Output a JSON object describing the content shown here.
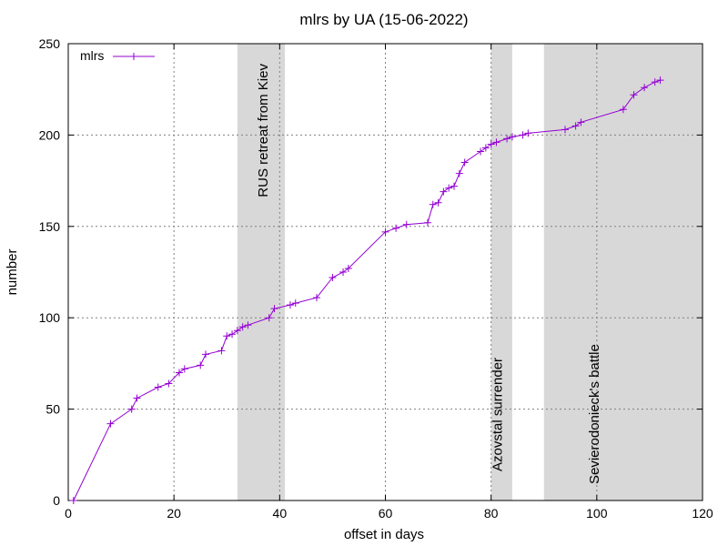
{
  "chart_data": {
    "type": "line",
    "title": "mlrs by UA (15-06-2022)",
    "xlabel": "offset in days",
    "ylabel": "number",
    "xlim": [
      0,
      120
    ],
    "ylim": [
      0,
      250
    ],
    "xticks": [
      0,
      20,
      40,
      60,
      80,
      100,
      120
    ],
    "yticks": [
      0,
      50,
      100,
      150,
      200,
      250
    ],
    "grid": true,
    "legend": {
      "position": "top-left"
    },
    "colors": {
      "series": "#9400d3",
      "band": "#d8d8d8"
    },
    "bands": [
      {
        "x0": 32,
        "x1": 41,
        "label": "RUS retreat from Kiev"
      },
      {
        "x0": 80,
        "x1": 84,
        "label": "Azovstal surrender"
      },
      {
        "x0": 90,
        "x1": 120,
        "label": "Sevierodonieck's battle"
      }
    ],
    "series": [
      {
        "name": "mlrs",
        "x": [
          1,
          8,
          12,
          13,
          17,
          19,
          21,
          22,
          25,
          26,
          29,
          30,
          31,
          32,
          33,
          34,
          38,
          39,
          42,
          43,
          47,
          50,
          52,
          53,
          60,
          62,
          64,
          68,
          69,
          70,
          71,
          72,
          73,
          74,
          75,
          78,
          79,
          80,
          81,
          83,
          84,
          86,
          87,
          94,
          96,
          97,
          105,
          107,
          109,
          111,
          112
        ],
        "y": [
          0,
          42,
          50,
          56,
          62,
          64,
          70,
          72,
          74,
          80,
          82,
          90,
          91,
          93,
          95,
          96,
          100,
          105,
          107,
          108,
          111,
          122,
          125,
          127,
          147,
          149,
          151,
          152,
          162,
          163,
          169,
          171,
          172,
          179,
          185,
          191,
          193,
          195,
          196,
          198,
          199,
          200,
          201,
          203,
          205,
          207,
          214,
          222,
          226,
          229,
          230
        ]
      }
    ]
  }
}
